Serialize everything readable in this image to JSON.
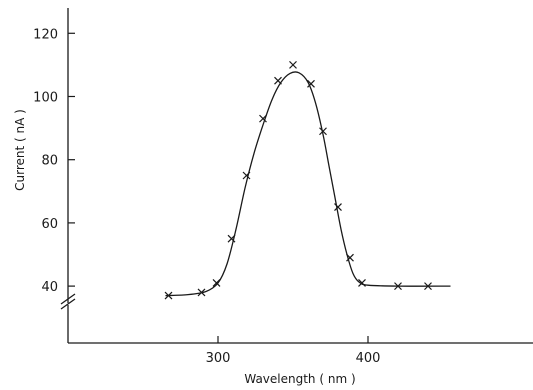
{
  "chart_data": {
    "type": "line",
    "title": "",
    "xlabel": "Wavelength ( nm )",
    "ylabel": "Current ( nA )",
    "xlim": [
      200,
      510
    ],
    "ylim": [
      22,
      128
    ],
    "x_ticks": [
      300,
      400
    ],
    "x_tick_labels": [
      "300",
      "400"
    ],
    "y_ticks": [
      40,
      60,
      80,
      100,
      120
    ],
    "y_tick_labels": [
      "40",
      "60",
      "80",
      "100",
      "120"
    ],
    "y_axis_break": true,
    "grid": false,
    "marker": "x",
    "series": [
      {
        "points": [
          [
            267,
            37
          ],
          [
            289,
            38
          ],
          [
            299,
            41
          ],
          [
            309,
            55
          ],
          [
            319,
            75
          ],
          [
            330,
            93
          ],
          [
            340,
            105
          ],
          [
            350,
            110
          ],
          [
            362,
            104
          ],
          [
            370,
            89
          ],
          [
            380,
            65
          ],
          [
            388,
            49
          ],
          [
            396,
            41
          ],
          [
            420,
            40
          ],
          [
            440,
            40
          ]
        ],
        "curve": [
          [
            265,
            37
          ],
          [
            280,
            37.3
          ],
          [
            292,
            38.3
          ],
          [
            300,
            41
          ],
          [
            306,
            47
          ],
          [
            312,
            58
          ],
          [
            318,
            71
          ],
          [
            324,
            82
          ],
          [
            330,
            91
          ],
          [
            336,
            99
          ],
          [
            342,
            104.5
          ],
          [
            348,
            107.3
          ],
          [
            354,
            107.5
          ],
          [
            360,
            104.5
          ],
          [
            365,
            98
          ],
          [
            370,
            88
          ],
          [
            374,
            78
          ],
          [
            378,
            68
          ],
          [
            382,
            58
          ],
          [
            386,
            50
          ],
          [
            390,
            44
          ],
          [
            394,
            41.3
          ],
          [
            400,
            40.3
          ],
          [
            420,
            40
          ],
          [
            455,
            40
          ]
        ]
      }
    ]
  }
}
